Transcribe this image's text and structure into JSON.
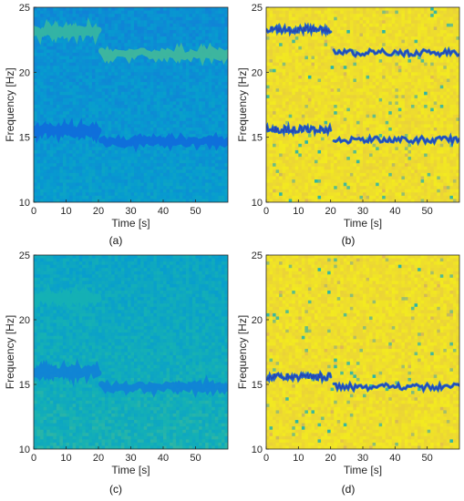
{
  "chart_data": [
    {
      "type": "heatmap",
      "panel_label": "(a)",
      "xlabel": "Time [s]",
      "ylabel": "Frequency [Hz]",
      "xlim": [
        0,
        60
      ],
      "ylim": [
        10,
        25
      ],
      "xticks": [
        0,
        10,
        20,
        30,
        40,
        50
      ],
      "yticks": [
        10,
        15,
        20,
        25
      ],
      "colormap": "parula",
      "background_level": 0.42,
      "tracks": [
        {
          "t": [
            0,
            20
          ],
          "f": [
            23.1,
            23.1
          ],
          "level": 0.66
        },
        {
          "t": [
            21,
            60
          ],
          "f": [
            21.4,
            21.4
          ],
          "level": 0.68
        },
        {
          "t": [
            0,
            20
          ],
          "f": [
            15.5,
            15.5
          ],
          "level": 0.22
        },
        {
          "t": [
            21,
            60
          ],
          "f": [
            14.7,
            14.7
          ],
          "level": 0.22
        }
      ]
    },
    {
      "type": "heatmap",
      "panel_label": "(b)",
      "xlabel": "Time [s]",
      "ylabel": "Frequency [Hz]",
      "xlim": [
        0,
        60
      ],
      "ylim": [
        10,
        25
      ],
      "xticks": [
        0,
        10,
        20,
        30,
        40,
        50
      ],
      "yticks": [
        10,
        15,
        20,
        25
      ],
      "colormap": "parula",
      "background_level": 0.98,
      "tracks": [
        {
          "t": [
            0,
            20
          ],
          "f": [
            23.3,
            23.3
          ],
          "level": 0.15
        },
        {
          "t": [
            21,
            60
          ],
          "f": [
            21.5,
            21.5
          ],
          "level": 0.15
        },
        {
          "t": [
            0,
            20
          ],
          "f": [
            15.6,
            15.6
          ],
          "level": 0.15
        },
        {
          "t": [
            21,
            60
          ],
          "f": [
            14.8,
            14.8
          ],
          "level": 0.15
        }
      ]
    },
    {
      "type": "heatmap",
      "panel_label": "(c)",
      "xlabel": "Time [s]",
      "ylabel": "Frequency [Hz]",
      "xlim": [
        0,
        60
      ],
      "ylim": [
        10,
        25
      ],
      "xticks": [
        0,
        10,
        20,
        30,
        40,
        50
      ],
      "yticks": [
        10,
        15,
        20,
        25
      ],
      "colormap": "parula",
      "background_level": 0.55,
      "tracks": [
        {
          "t": [
            0,
            20
          ],
          "f": [
            21.7,
            21.7
          ],
          "level": 0.6
        },
        {
          "t": [
            0,
            20
          ],
          "f": [
            16.0,
            16.0
          ],
          "level": 0.32
        },
        {
          "t": [
            21,
            60
          ],
          "f": [
            14.8,
            14.8
          ],
          "level": 0.32
        }
      ]
    },
    {
      "type": "heatmap",
      "panel_label": "(d)",
      "xlabel": "Time [s]",
      "ylabel": "Frequency [Hz]",
      "xlim": [
        0,
        60
      ],
      "ylim": [
        10,
        25
      ],
      "xticks": [
        0,
        10,
        20,
        30,
        40,
        50
      ],
      "yticks": [
        10,
        15,
        20,
        25
      ],
      "colormap": "parula",
      "background_level": 0.98,
      "tracks": [
        {
          "t": [
            0,
            20
          ],
          "f": [
            15.6,
            15.6
          ],
          "level": 0.15
        },
        {
          "t": [
            21,
            60
          ],
          "f": [
            14.8,
            14.8
          ],
          "level": 0.15
        }
      ]
    }
  ]
}
